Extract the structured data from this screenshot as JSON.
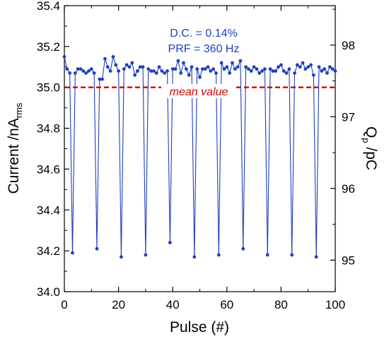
{
  "chart_data": {
    "type": "line",
    "xlabel": "Pulse (#)",
    "ylabel": {
      "main": "Current /nA",
      "sub": "rms"
    },
    "ylabel_right": {
      "main": "Q",
      "sub": "p",
      "tail": " /pC"
    },
    "xlim": [
      0,
      100
    ],
    "ylim": [
      34.0,
      35.4
    ],
    "ylim_right": [
      94.56,
      98.55
    ],
    "x_ticks": [
      0,
      20,
      40,
      60,
      80,
      100
    ],
    "x_tick_labels": [
      "0",
      "20",
      "40",
      "60",
      "80",
      "100"
    ],
    "y_ticks": [
      34.0,
      34.2,
      34.4,
      34.6,
      34.8,
      35.0,
      35.2,
      35.4
    ],
    "y_tick_labels": [
      "34.0",
      "34.2",
      "34.4",
      "34.6",
      "34.8",
      "35.0",
      "35.2",
      "35.4"
    ],
    "y_right_ticks": [
      95,
      96,
      97,
      98
    ],
    "y_right_tick_labels": [
      "95",
      "96",
      "97",
      "98"
    ],
    "annotations": [
      "D.C. = 0.14%",
      "PRF = 360 Hz"
    ],
    "mean_line": {
      "y": 35.0,
      "label": "mean value",
      "color": "#dd0000",
      "style": "dashed"
    },
    "series": [
      {
        "color": "#1f3fbf",
        "marker": "circle",
        "x": [
          0,
          1,
          2,
          3,
          4,
          5,
          6,
          7,
          8,
          9,
          10,
          11,
          12,
          13,
          14,
          15,
          16,
          17,
          18,
          19,
          20,
          21,
          22,
          23,
          24,
          25,
          26,
          27,
          28,
          29,
          30,
          31,
          32,
          33,
          34,
          35,
          36,
          37,
          38,
          39,
          40,
          41,
          42,
          43,
          44,
          45,
          46,
          47,
          48,
          49,
          50,
          51,
          52,
          53,
          54,
          55,
          56,
          57,
          58,
          59,
          60,
          61,
          62,
          63,
          64,
          65,
          66,
          67,
          68,
          69,
          70,
          71,
          72,
          73,
          74,
          75,
          76,
          77,
          78,
          79,
          80,
          81,
          82,
          83,
          84,
          85,
          86,
          87,
          88,
          89,
          90,
          91,
          92,
          93,
          94,
          95,
          96,
          97,
          98,
          99,
          100
        ],
        "y": [
          35.15,
          35.09,
          35.07,
          34.19,
          35.07,
          35.09,
          35.09,
          35.08,
          35.07,
          35.08,
          35.09,
          35.07,
          34.21,
          35.04,
          35.04,
          35.14,
          35.1,
          35.08,
          35.15,
          35.11,
          35.08,
          34.17,
          35.09,
          35.11,
          35.1,
          35.12,
          35.06,
          35.08,
          35.1,
          35.1,
          34.18,
          35.09,
          35.08,
          35.08,
          35.07,
          35.1,
          35.08,
          35.07,
          35.08,
          34.24,
          35.09,
          35.09,
          35.13,
          35.07,
          35.12,
          35.09,
          35.06,
          35.1,
          34.17,
          35.09,
          35.05,
          35.09,
          35.09,
          35.1,
          35.08,
          35.09,
          35.07,
          34.18,
          35.12,
          35.09,
          35.1,
          35.07,
          35.12,
          35.09,
          35.1,
          35.13,
          34.21,
          35.1,
          35.09,
          35.08,
          35.1,
          35.09,
          35.07,
          35.08,
          35.09,
          34.18,
          35.09,
          35.08,
          35.08,
          35.1,
          35.11,
          35.08,
          35.07,
          35.09,
          34.18,
          35.07,
          35.11,
          35.1,
          35.12,
          35.09,
          35.1,
          35.11,
          35.06,
          34.17,
          35.1,
          35.08,
          35.09,
          35.07,
          35.1,
          35.09,
          35.08
        ]
      }
    ]
  }
}
